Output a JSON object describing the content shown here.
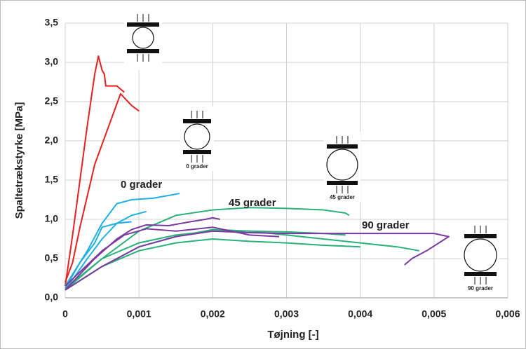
{
  "chart_data": {
    "type": "line",
    "xlabel": "Tøjning [-]",
    "ylabel": "Spaltetrækstyrke [MPa]",
    "xlim": [
      0,
      0.006
    ],
    "ylim": [
      0,
      3.5
    ],
    "grid": true,
    "xticks": [
      {
        "value": 0,
        "label": "0"
      },
      {
        "value": 0.001,
        "label": "0,001"
      },
      {
        "value": 0.002,
        "label": "0,002"
      },
      {
        "value": 0.003,
        "label": "0,003"
      },
      {
        "value": 0.004,
        "label": "0,004"
      },
      {
        "value": 0.005,
        "label": "0,005"
      },
      {
        "value": 0.006,
        "label": "0,006"
      }
    ],
    "yticks": [
      {
        "value": 0,
        "label": "0,0"
      },
      {
        "value": 0.5,
        "label": "0,5"
      },
      {
        "value": 1,
        "label": "1,0"
      },
      {
        "value": 1.5,
        "label": "1,5"
      },
      {
        "value": 2,
        "label": "2,0"
      },
      {
        "value": 2.5,
        "label": "2,5"
      },
      {
        "value": 3,
        "label": "3,0"
      },
      {
        "value": 3.5,
        "label": "3,5"
      }
    ],
    "annotations": [
      {
        "text": "0 grader",
        "color": "#1fb0e0"
      },
      {
        "text": "45 grader",
        "color": "#2ab07a"
      },
      {
        "text": "90 grader",
        "color": "#7a3aa0"
      }
    ],
    "specimen_labels": [
      "0 grader",
      "45 grader",
      "90 grader"
    ],
    "series": [
      {
        "color": "#e8201f",
        "x": [
          0,
          0.0001,
          0.0002,
          0.0003,
          0.0004,
          0.00045,
          0.0005,
          0.00053,
          0.00055,
          0.0007,
          0.0008
        ],
        "values": [
          0.15,
          0.8,
          1.5,
          2.2,
          2.85,
          3.08,
          2.9,
          2.85,
          2.7,
          2.7,
          2.62
        ]
      },
      {
        "color": "#e8201f",
        "x": [
          0,
          0.0001,
          0.0002,
          0.0003,
          0.0004,
          0.00075,
          0.0008,
          0.0009,
          0.001
        ],
        "values": [
          0.2,
          0.45,
          0.9,
          1.3,
          1.7,
          2.6,
          2.55,
          2.45,
          2.38
        ]
      },
      {
        "color": "#1fb0e0",
        "x": [
          0,
          0.0003,
          0.0005,
          0.0007,
          0.0009,
          0.0012,
          0.00155
        ],
        "values": [
          0.15,
          0.6,
          0.95,
          1.2,
          1.25,
          1.27,
          1.33
        ]
      },
      {
        "color": "#1fb0e0",
        "x": [
          0,
          0.0003,
          0.0005,
          0.0007,
          0.0009,
          0.0011
        ],
        "values": [
          0.1,
          0.5,
          0.75,
          0.95,
          1.05,
          1.1
        ]
      },
      {
        "color": "#1fb0e0",
        "x": [
          0,
          0.0002,
          0.0004,
          0.0005,
          0.0007,
          0.0009
        ],
        "values": [
          0.12,
          0.45,
          0.7,
          0.9,
          0.95,
          0.97
        ]
      },
      {
        "color": "#2ab07a",
        "x": [
          0,
          0.0005,
          0.001,
          0.0015,
          0.002,
          0.0025,
          0.003,
          0.0035,
          0.0038,
          0.00385
        ],
        "values": [
          0.1,
          0.5,
          0.85,
          1.05,
          1.12,
          1.15,
          1.14,
          1.12,
          1.08,
          1.05
        ]
      },
      {
        "color": "#2ab07a",
        "x": [
          0,
          0.0005,
          0.001,
          0.0015,
          0.002,
          0.0025,
          0.003,
          0.0035,
          0.004,
          0.0045,
          0.0048
        ],
        "values": [
          0.1,
          0.4,
          0.65,
          0.78,
          0.87,
          0.85,
          0.8,
          0.75,
          0.7,
          0.65,
          0.6
        ]
      },
      {
        "color": "#2ab07a",
        "x": [
          0,
          0.0005,
          0.001,
          0.0015,
          0.002,
          0.0025,
          0.003,
          0.0035,
          0.004
        ],
        "values": [
          0.1,
          0.4,
          0.6,
          0.7,
          0.75,
          0.72,
          0.7,
          0.67,
          0.65
        ]
      },
      {
        "color": "#2ab07a",
        "x": [
          0,
          0.0005,
          0.001,
          0.0015,
          0.002,
          0.0025,
          0.003,
          0.0035,
          0.0038
        ],
        "values": [
          0.12,
          0.5,
          0.7,
          0.8,
          0.85,
          0.85,
          0.84,
          0.82,
          0.8
        ]
      },
      {
        "color": "#7a3aa0",
        "x": [
          0,
          0.0005,
          0.001,
          0.0015,
          0.002,
          0.0025,
          0.003,
          0.0035,
          0.004,
          0.0045,
          0.005,
          0.0051,
          0.0052,
          0.0051,
          0.0049,
          0.0047,
          0.0046
        ],
        "values": [
          0.1,
          0.4,
          0.65,
          0.78,
          0.85,
          0.83,
          0.82,
          0.82,
          0.82,
          0.82,
          0.82,
          0.8,
          0.78,
          0.72,
          0.6,
          0.5,
          0.42
        ]
      },
      {
        "color": "#7a3aa0",
        "x": [
          0,
          0.0004,
          0.0007,
          0.0009,
          0.0011,
          0.0014,
          0.0017,
          0.0019,
          0.002,
          0.0021
        ],
        "values": [
          0.1,
          0.5,
          0.75,
          0.87,
          0.93,
          0.92,
          0.97,
          1.0,
          1.02,
          1.0
        ]
      },
      {
        "color": "#7a3aa0",
        "x": [
          0,
          0.0005,
          0.0008,
          0.0011,
          0.0015,
          0.002,
          0.0025,
          0.0029
        ],
        "values": [
          0.15,
          0.6,
          0.8,
          0.88,
          0.85,
          0.9,
          0.8,
          0.78
        ]
      }
    ]
  }
}
